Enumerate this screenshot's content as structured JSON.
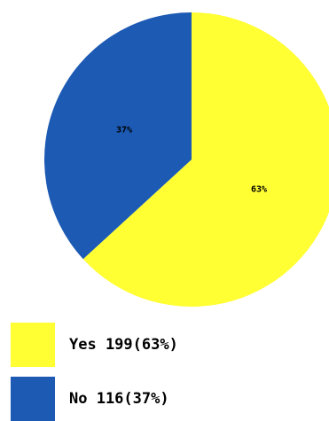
{
  "chart_data": {
    "type": "pie",
    "categories": [
      "Yes",
      "No"
    ],
    "values": [
      199,
      116
    ],
    "slice_labels": [
      "63%",
      "37%"
    ],
    "colors": [
      "#ffff33",
      "#1c5ab4"
    ],
    "legend": [
      {
        "text": "Yes 199(63%)",
        "color": "#ffff33"
      },
      {
        "text": "No 116(37%)",
        "color": "#1c5ab4"
      }
    ],
    "legend_position": "bottom-left"
  }
}
